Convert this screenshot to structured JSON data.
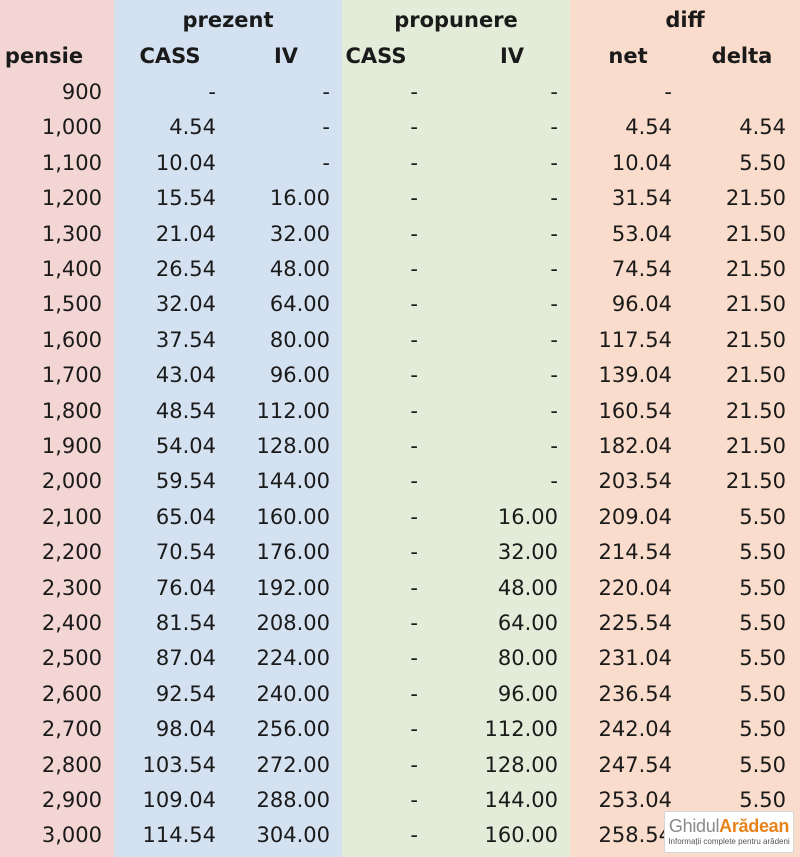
{
  "colors": {
    "pensie_band": "#f3d5d4",
    "prezent_band": "#d4e1f1",
    "propunere_band": "#e3ecd8",
    "diff_band": "#f9dccb",
    "logo_accent": "#e8821a"
  },
  "groups": {
    "prezent": "prezent",
    "propunere": "propunere",
    "diff": "diff"
  },
  "headers": {
    "pensie": "pensie",
    "prezent_cass": "CASS",
    "prezent_iv": "IV",
    "propunere_cass": "CASS",
    "propunere_iv": "IV",
    "net": "net",
    "delta": "delta"
  },
  "rows": [
    {
      "pensie": "900",
      "p_cass": "-",
      "p_iv": "-",
      "r_cass": "-",
      "r_iv": "-",
      "net": "-",
      "delta": ""
    },
    {
      "pensie": "1,000",
      "p_cass": "4.54",
      "p_iv": "-",
      "r_cass": "-",
      "r_iv": "-",
      "net": "4.54",
      "delta": "4.54"
    },
    {
      "pensie": "1,100",
      "p_cass": "10.04",
      "p_iv": "-",
      "r_cass": "-",
      "r_iv": "-",
      "net": "10.04",
      "delta": "5.50"
    },
    {
      "pensie": "1,200",
      "p_cass": "15.54",
      "p_iv": "16.00",
      "r_cass": "-",
      "r_iv": "-",
      "net": "31.54",
      "delta": "21.50"
    },
    {
      "pensie": "1,300",
      "p_cass": "21.04",
      "p_iv": "32.00",
      "r_cass": "-",
      "r_iv": "-",
      "net": "53.04",
      "delta": "21.50"
    },
    {
      "pensie": "1,400",
      "p_cass": "26.54",
      "p_iv": "48.00",
      "r_cass": "-",
      "r_iv": "-",
      "net": "74.54",
      "delta": "21.50"
    },
    {
      "pensie": "1,500",
      "p_cass": "32.04",
      "p_iv": "64.00",
      "r_cass": "-",
      "r_iv": "-",
      "net": "96.04",
      "delta": "21.50"
    },
    {
      "pensie": "1,600",
      "p_cass": "37.54",
      "p_iv": "80.00",
      "r_cass": "-",
      "r_iv": "-",
      "net": "117.54",
      "delta": "21.50"
    },
    {
      "pensie": "1,700",
      "p_cass": "43.04",
      "p_iv": "96.00",
      "r_cass": "-",
      "r_iv": "-",
      "net": "139.04",
      "delta": "21.50"
    },
    {
      "pensie": "1,800",
      "p_cass": "48.54",
      "p_iv": "112.00",
      "r_cass": "-",
      "r_iv": "-",
      "net": "160.54",
      "delta": "21.50"
    },
    {
      "pensie": "1,900",
      "p_cass": "54.04",
      "p_iv": "128.00",
      "r_cass": "-",
      "r_iv": "-",
      "net": "182.04",
      "delta": "21.50"
    },
    {
      "pensie": "2,000",
      "p_cass": "59.54",
      "p_iv": "144.00",
      "r_cass": "-",
      "r_iv": "-",
      "net": "203.54",
      "delta": "21.50"
    },
    {
      "pensie": "2,100",
      "p_cass": "65.04",
      "p_iv": "160.00",
      "r_cass": "-",
      "r_iv": "16.00",
      "net": "209.04",
      "delta": "5.50"
    },
    {
      "pensie": "2,200",
      "p_cass": "70.54",
      "p_iv": "176.00",
      "r_cass": "-",
      "r_iv": "32.00",
      "net": "214.54",
      "delta": "5.50"
    },
    {
      "pensie": "2,300",
      "p_cass": "76.04",
      "p_iv": "192.00",
      "r_cass": "-",
      "r_iv": "48.00",
      "net": "220.04",
      "delta": "5.50"
    },
    {
      "pensie": "2,400",
      "p_cass": "81.54",
      "p_iv": "208.00",
      "r_cass": "-",
      "r_iv": "64.00",
      "net": "225.54",
      "delta": "5.50"
    },
    {
      "pensie": "2,500",
      "p_cass": "87.04",
      "p_iv": "224.00",
      "r_cass": "-",
      "r_iv": "80.00",
      "net": "231.04",
      "delta": "5.50"
    },
    {
      "pensie": "2,600",
      "p_cass": "92.54",
      "p_iv": "240.00",
      "r_cass": "-",
      "r_iv": "96.00",
      "net": "236.54",
      "delta": "5.50"
    },
    {
      "pensie": "2,700",
      "p_cass": "98.04",
      "p_iv": "256.00",
      "r_cass": "-",
      "r_iv": "112.00",
      "net": "242.04",
      "delta": "5.50"
    },
    {
      "pensie": "2,800",
      "p_cass": "103.54",
      "p_iv": "272.00",
      "r_cass": "-",
      "r_iv": "128.00",
      "net": "247.54",
      "delta": "5.50"
    },
    {
      "pensie": "2,900",
      "p_cass": "109.04",
      "p_iv": "288.00",
      "r_cass": "-",
      "r_iv": "144.00",
      "net": "253.04",
      "delta": "5.50"
    },
    {
      "pensie": "3,000",
      "p_cass": "114.54",
      "p_iv": "304.00",
      "r_cass": "-",
      "r_iv": "160.00",
      "net": "258.54",
      "delta": ""
    }
  ],
  "logo": {
    "part1": "Ghidul",
    "part2": "Arădean",
    "tagline": "Informații complete pentru arădeni"
  }
}
